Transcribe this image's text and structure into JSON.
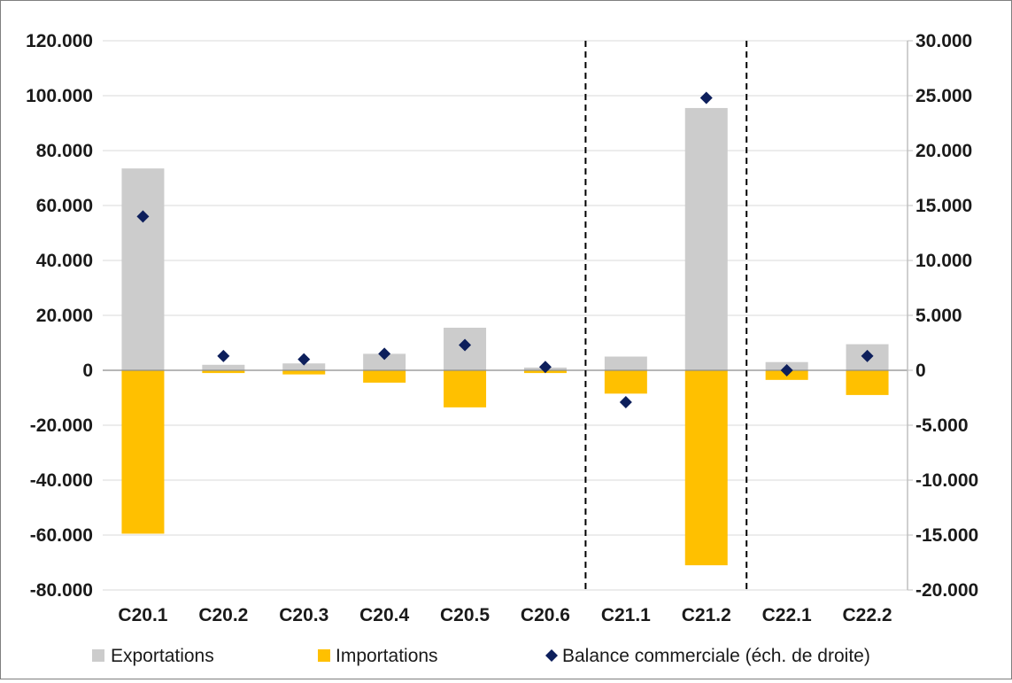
{
  "chart_data": {
    "type": "bar",
    "categories": [
      "C20.1",
      "C20.2",
      "C20.3",
      "C20.4",
      "C20.5",
      "C20.6",
      "C21.1",
      "C21.2",
      "C22.1",
      "C22.2"
    ],
    "series": [
      {
        "name": "Exportations",
        "type": "bar",
        "axis": "left",
        "color": "#cccccc",
        "values": [
          73500,
          2000,
          2500,
          6000,
          15500,
          1000,
          5000,
          95500,
          3000,
          9500
        ]
      },
      {
        "name": "Importations",
        "type": "bar",
        "axis": "left",
        "color": "#ffc000",
        "values": [
          -59500,
          -1000,
          -1500,
          -4500,
          -13500,
          -1000,
          -8500,
          -71000,
          -3500,
          -9000
        ]
      },
      {
        "name": "Balance commerciale (éch. de droite)",
        "type": "scatter",
        "axis": "right",
        "color": "#0d1f5c",
        "values": [
          14000,
          1300,
          1000,
          1500,
          2300,
          300,
          -2900,
          24800,
          0,
          1300
        ]
      }
    ],
    "left_axis": {
      "min": -80000,
      "max": 120000,
      "step": 20000,
      "tick_labels": [
        "-80.000",
        "-60.000",
        "-40.000",
        "-20.000",
        "0",
        "20.000",
        "40.000",
        "60.000",
        "80.000",
        "100.000",
        "120.000"
      ]
    },
    "right_axis": {
      "min": -20000,
      "max": 30000,
      "step": 5000,
      "tick_labels": [
        "-20.000",
        "-15.000",
        "-10.000",
        "-5.000",
        "0",
        "5.000",
        "10.000",
        "15.000",
        "20.000",
        "25.000",
        "30.000"
      ]
    },
    "group_separators_after": [
      "C20.6",
      "C21.2"
    ],
    "grid": true,
    "legend_position": "bottom"
  }
}
